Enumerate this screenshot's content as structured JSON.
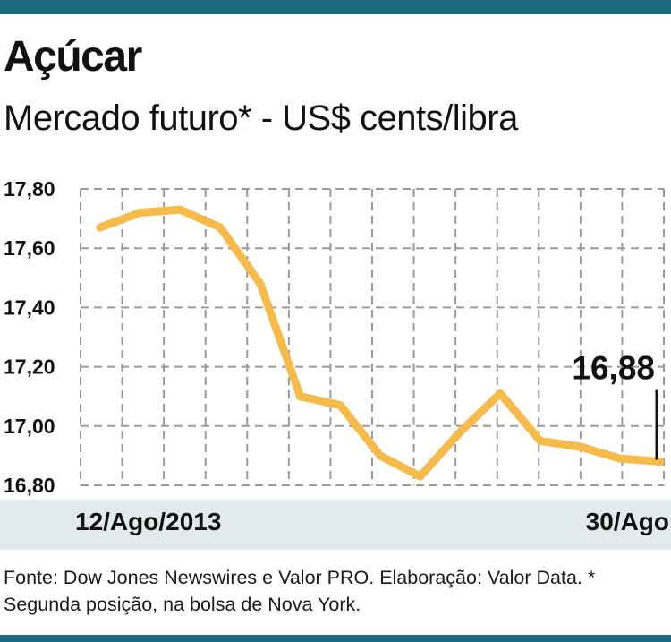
{
  "header": {
    "title": "Açúcar",
    "subtitle": "Mercado futuro* - US$ cents/libra"
  },
  "colors": {
    "accent_bar": "#1e6a7e",
    "line": "#f7bb4c",
    "x_band": "#e2eaed"
  },
  "footer": {
    "source": "Fonte: Dow Jones Newswires e Valor PRO. Elaboração: Valor Data. * Segunda posição, na bolsa de Nova York."
  },
  "chart_data": {
    "type": "line",
    "title": "Açúcar",
    "subtitle": "Mercado futuro* - US$ cents/libra",
    "x_start_label": "12/Ago/2013",
    "x_end_label": "30/Ago",
    "ylim": [
      16.8,
      17.8
    ],
    "y_ticks": [
      "16,80",
      "17,00",
      "17,20",
      "17,40",
      "17,60",
      "17,80"
    ],
    "grid": true,
    "series": [
      {
        "values": [
          17.67,
          17.72,
          17.73,
          17.67,
          17.48,
          17.1,
          17.07,
          16.9,
          16.83,
          16.98,
          17.11,
          16.95,
          16.93,
          16.89,
          16.88
        ]
      }
    ],
    "annotation": {
      "label": "16,88",
      "value": 16.88
    }
  }
}
